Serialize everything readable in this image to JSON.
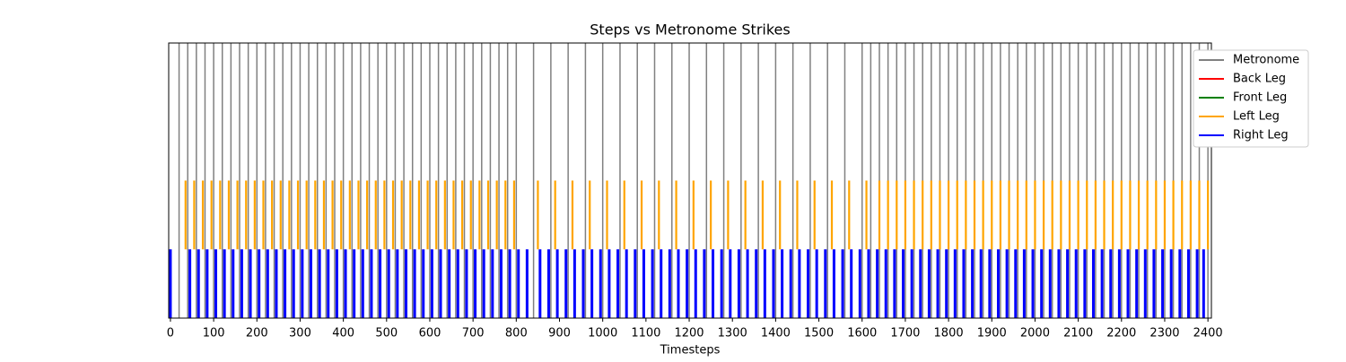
{
  "chart_data": {
    "type": "event",
    "title": "Steps vs Metronome Strikes",
    "xlabel": "Timesteps",
    "xlim": [
      -4,
      2408
    ],
    "xticks": [
      0,
      100,
      200,
      300,
      400,
      500,
      600,
      700,
      800,
      900,
      1000,
      1100,
      1200,
      1300,
      1400,
      1500,
      1600,
      1700,
      1800,
      1900,
      2000,
      2100,
      2200,
      2300,
      2400
    ],
    "legend": "upper right",
    "series": [
      {
        "name": "Metronome",
        "color": "#808080",
        "values": [
          20,
          40,
          60,
          80,
          100,
          120,
          140,
          160,
          180,
          200,
          220,
          240,
          260,
          280,
          300,
          320,
          340,
          360,
          380,
          400,
          420,
          440,
          460,
          480,
          500,
          520,
          540,
          560,
          580,
          600,
          620,
          640,
          660,
          680,
          700,
          720,
          740,
          760,
          780,
          800,
          840,
          880,
          920,
          960,
          1000,
          1040,
          1080,
          1120,
          1160,
          1200,
          1240,
          1280,
          1320,
          1360,
          1400,
          1440,
          1480,
          1520,
          1560,
          1600,
          1620,
          1640,
          1660,
          1680,
          1700,
          1720,
          1740,
          1760,
          1780,
          1800,
          1820,
          1840,
          1860,
          1880,
          1900,
          1920,
          1940,
          1960,
          1980,
          2000,
          2020,
          2040,
          2060,
          2080,
          2100,
          2120,
          2140,
          2160,
          2180,
          2200,
          2220,
          2240,
          2260,
          2280,
          2300,
          2320,
          2340,
          2360,
          2380,
          2400
        ]
      },
      {
        "name": "Back Leg",
        "color": "#ff0000",
        "values": []
      },
      {
        "name": "Front Leg",
        "color": "#008000",
        "values": []
      },
      {
        "name": "Left Leg",
        "color": "#ffa500",
        "values": [
          35,
          55,
          75,
          95,
          115,
          135,
          155,
          175,
          195,
          215,
          235,
          255,
          275,
          295,
          315,
          335,
          355,
          375,
          395,
          415,
          435,
          455,
          475,
          495,
          515,
          535,
          555,
          575,
          595,
          615,
          635,
          655,
          675,
          695,
          715,
          735,
          755,
          775,
          795,
          850,
          890,
          930,
          970,
          1010,
          1050,
          1090,
          1130,
          1170,
          1210,
          1250,
          1290,
          1330,
          1370,
          1410,
          1450,
          1490,
          1530,
          1570,
          1610,
          1640,
          1660,
          1680,
          1700,
          1720,
          1740,
          1760,
          1780,
          1800,
          1820,
          1840,
          1860,
          1880,
          1900,
          1920,
          1940,
          1960,
          1980,
          2000,
          2020,
          2040,
          2060,
          2080,
          2100,
          2120,
          2140,
          2160,
          2180,
          2200,
          2220,
          2240,
          2260,
          2280,
          2300,
          2320,
          2340,
          2360,
          2380,
          2400
        ]
      },
      {
        "name": "Right Leg",
        "color": "#0000ff",
        "values": [
          0,
          45,
          65,
          85,
          105,
          125,
          145,
          165,
          185,
          205,
          225,
          245,
          265,
          285,
          305,
          325,
          345,
          365,
          385,
          405,
          425,
          445,
          465,
          485,
          505,
          525,
          545,
          565,
          585,
          605,
          625,
          645,
          665,
          685,
          705,
          725,
          745,
          765,
          785,
          805,
          825,
          855,
          875,
          895,
          915,
          935,
          955,
          975,
          995,
          1015,
          1035,
          1055,
          1075,
          1095,
          1115,
          1135,
          1155,
          1175,
          1195,
          1215,
          1235,
          1255,
          1275,
          1295,
          1315,
          1335,
          1355,
          1375,
          1395,
          1415,
          1435,
          1455,
          1475,
          1495,
          1515,
          1535,
          1555,
          1575,
          1595,
          1615,
          1635,
          1655,
          1675,
          1695,
          1715,
          1735,
          1755,
          1775,
          1795,
          1815,
          1835,
          1855,
          1875,
          1895,
          1915,
          1935,
          1955,
          1975,
          1995,
          2015,
          2035,
          2055,
          2075,
          2095,
          2115,
          2135,
          2155,
          2175,
          2195,
          2215,
          2235,
          2255,
          2275,
          2295,
          2315,
          2335,
          2355,
          2375,
          2390
        ]
      }
    ]
  }
}
